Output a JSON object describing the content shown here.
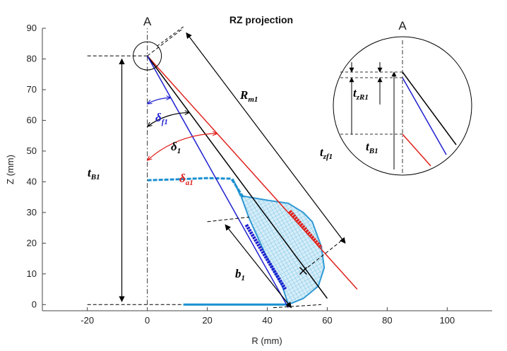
{
  "chart_data": {
    "type": "line",
    "title": "RZ projection",
    "xlabel": "R (mm)",
    "ylabel": "Z (mm)",
    "xlim": [
      -35,
      115
    ],
    "ylim": [
      -2,
      90
    ],
    "xticks": [
      -20,
      0,
      20,
      40,
      60,
      80,
      100
    ],
    "yticks": [
      0,
      10,
      20,
      30,
      40,
      50,
      60,
      70,
      80,
      90
    ],
    "grid": false,
    "section_marker": "A",
    "series": [
      {
        "name": "red tangent line",
        "color": "#e0201b",
        "points": [
          [
            0,
            81
          ],
          [
            70,
            5
          ]
        ]
      },
      {
        "name": "black axis line",
        "color": "#000000",
        "points": [
          [
            0,
            81
          ],
          [
            60,
            2
          ]
        ]
      },
      {
        "name": "blue line",
        "color": "#1f1fd0",
        "points": [
          [
            0,
            81
          ],
          [
            47,
            -1
          ]
        ]
      },
      {
        "name": "centerline",
        "color": "#333333",
        "points": [
          [
            0,
            0
          ],
          [
            0,
            90
          ]
        ]
      },
      {
        "name": "mesh outline",
        "color": "#1a8fd0",
        "points": [
          [
            0,
            40.5
          ],
          [
            10,
            40.8
          ],
          [
            20,
            41.2
          ],
          [
            28,
            41
          ],
          [
            30,
            38
          ],
          [
            32,
            35
          ],
          [
            40,
            34
          ],
          [
            47,
            33
          ],
          [
            52,
            30
          ],
          [
            55,
            27
          ],
          [
            58,
            19
          ],
          [
            59,
            12
          ],
          [
            57,
            6
          ],
          [
            52,
            2
          ],
          [
            47,
            0
          ],
          [
            40,
            0
          ],
          [
            30,
            0
          ],
          [
            20,
            0
          ],
          [
            12,
            0
          ]
        ]
      }
    ],
    "annotations": [
      {
        "label": "R",
        "sub": "m1"
      },
      {
        "label": "δ",
        "sub": "f1",
        "color": "#1f1fd0"
      },
      {
        "label": "δ",
        "sub": "1",
        "color": "#000000"
      },
      {
        "label": "δ",
        "sub": "a1",
        "color": "#e0201b"
      },
      {
        "label": "t",
        "sub": "B1"
      },
      {
        "label": "b",
        "sub": "1"
      }
    ],
    "inset": {
      "marker": "A",
      "labels": [
        {
          "label": "t",
          "sub": "zR1"
        },
        {
          "label": "t",
          "sub": "zf1"
        },
        {
          "label": "t",
          "sub": "B1"
        }
      ]
    }
  }
}
